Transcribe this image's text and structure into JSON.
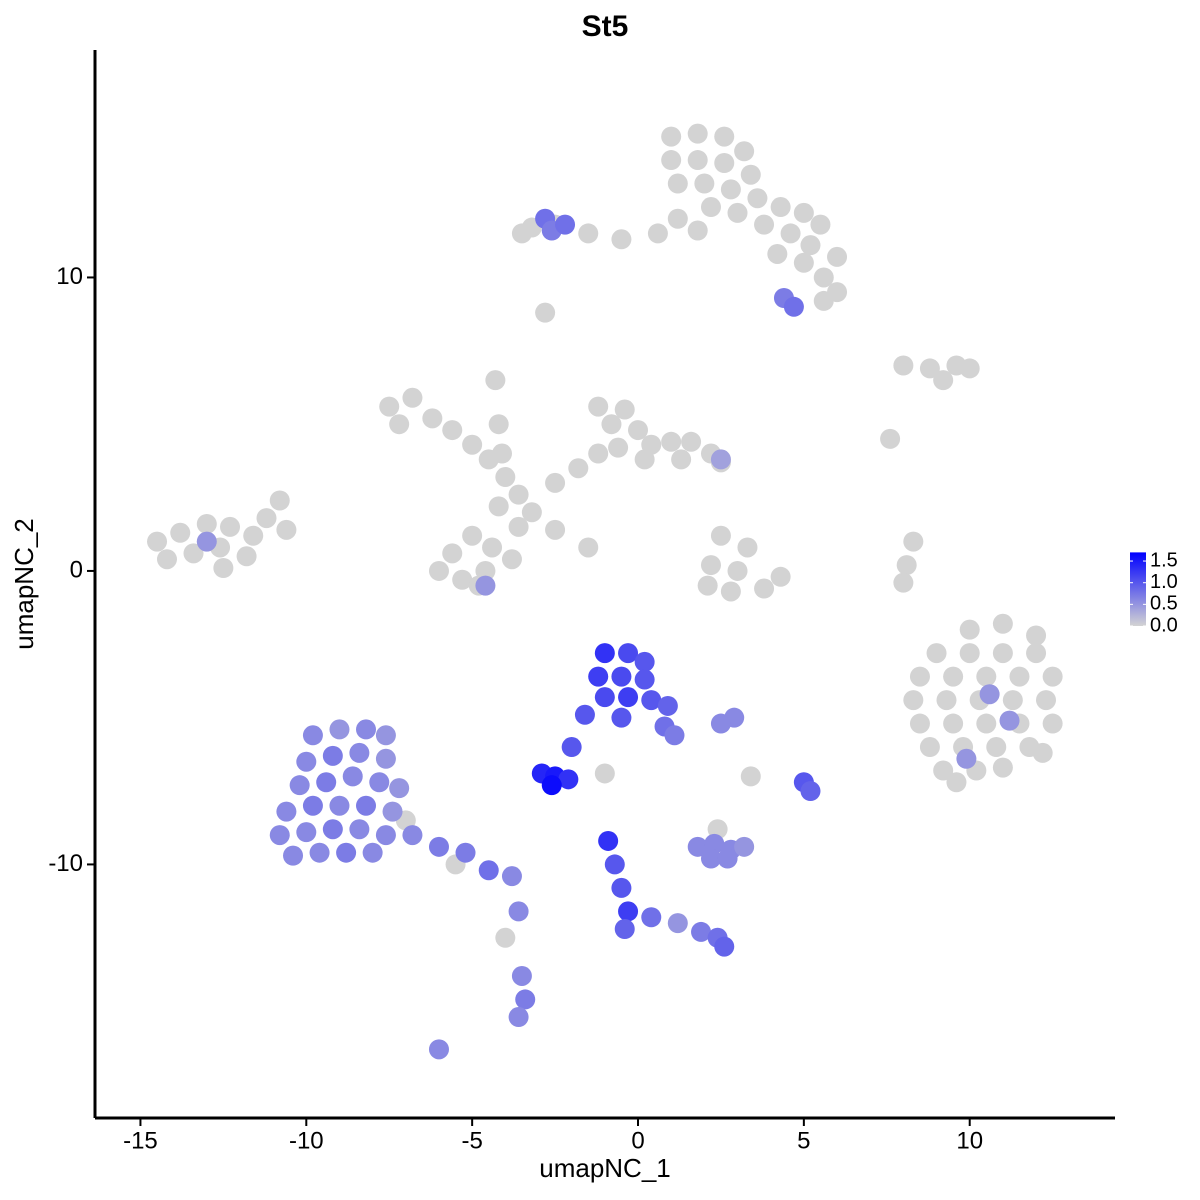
{
  "chart_data": {
    "type": "scatter",
    "title": "St5",
    "x_label": "umapNC_1",
    "y_label": "umapNC_2",
    "xlim": [
      -16.37,
      14.38
    ],
    "ylim": [
      -18.64,
      17.75
    ],
    "xticks": [
      -15,
      -10,
      -5,
      0,
      5,
      10
    ],
    "yticks": [
      -10,
      0,
      10
    ],
    "low_color": "#d3d3d3",
    "high_color": "#0000ff",
    "colorbar": {
      "lim": [
        0,
        1.7
      ],
      "ticks": [
        {
          "value": 0,
          "label": "0.0"
        },
        {
          "value": 0.5,
          "label": "0.5"
        },
        {
          "value": 1,
          "label": "1.0"
        },
        {
          "value": 1.5,
          "label": "1.5"
        }
      ]
    },
    "points": [
      {
        "x": 1,
        "y": 14.8,
        "value": 0
      },
      {
        "x": 1.8,
        "y": 14.9,
        "value": 0
      },
      {
        "x": 2.6,
        "y": 14.8,
        "value": 0
      },
      {
        "x": 3.2,
        "y": 14.3,
        "value": 0
      },
      {
        "x": 1,
        "y": 14,
        "value": 0
      },
      {
        "x": 1.8,
        "y": 14,
        "value": 0
      },
      {
        "x": 2.6,
        "y": 13.9,
        "value": 0
      },
      {
        "x": 3.4,
        "y": 13.5,
        "value": 0
      },
      {
        "x": 1.2,
        "y": 13.2,
        "value": 0
      },
      {
        "x": 2,
        "y": 13.2,
        "value": 0
      },
      {
        "x": 2.8,
        "y": 13,
        "value": 0
      },
      {
        "x": 3.6,
        "y": 12.7,
        "value": 0
      },
      {
        "x": 4.3,
        "y": 12.4,
        "value": 0
      },
      {
        "x": 5,
        "y": 12.2,
        "value": 0
      },
      {
        "x": 5.5,
        "y": 11.8,
        "value": 0
      },
      {
        "x": 2.2,
        "y": 12.4,
        "value": 0
      },
      {
        "x": 3,
        "y": 12.2,
        "value": 0
      },
      {
        "x": 3.8,
        "y": 11.8,
        "value": 0
      },
      {
        "x": 4.6,
        "y": 11.5,
        "value": 0
      },
      {
        "x": 1.8,
        "y": 11.6,
        "value": 0
      },
      {
        "x": 4.2,
        "y": 10.8,
        "value": 0
      },
      {
        "x": 5,
        "y": 10.5,
        "value": 0
      },
      {
        "x": 5.6,
        "y": 10,
        "value": 0
      },
      {
        "x": 6,
        "y": 9.5,
        "value": 0
      },
      {
        "x": 5.2,
        "y": 11.1,
        "value": 0
      },
      {
        "x": 1.2,
        "y": 12,
        "value": 0
      },
      {
        "x": 0.6,
        "y": 11.5,
        "value": 0
      },
      {
        "x": -0.5,
        "y": 11.3,
        "value": 0
      },
      {
        "x": -1.5,
        "y": 11.5,
        "value": 0
      },
      {
        "x": -2.5,
        "y": 11.8,
        "value": 0
      },
      {
        "x": -3.2,
        "y": 11.7,
        "value": 0
      },
      {
        "x": -3.5,
        "y": 11.5,
        "value": 0
      },
      {
        "x": 6,
        "y": 10.7,
        "value": 0
      },
      {
        "x": 5.6,
        "y": 9.2,
        "value": 0
      },
      {
        "x": -2.8,
        "y": 12,
        "value": 0.8
      },
      {
        "x": -2.6,
        "y": 11.6,
        "value": 0.7
      },
      {
        "x": -2.2,
        "y": 11.8,
        "value": 0.8
      },
      {
        "x": 4.4,
        "y": 9.3,
        "value": 0.7
      },
      {
        "x": 4.7,
        "y": 9,
        "value": 0.8
      },
      {
        "x": -2.8,
        "y": 8.8,
        "value": 0
      },
      {
        "x": -7.5,
        "y": 5.6,
        "value": 0
      },
      {
        "x": -6.8,
        "y": 5.9,
        "value": 0
      },
      {
        "x": -6.2,
        "y": 5.2,
        "value": 0
      },
      {
        "x": -7.2,
        "y": 5,
        "value": 0
      },
      {
        "x": -5.6,
        "y": 4.8,
        "value": 0
      },
      {
        "x": -5,
        "y": 4.3,
        "value": 0
      },
      {
        "x": -4.5,
        "y": 3.8,
        "value": 0
      },
      {
        "x": -4,
        "y": 3.2,
        "value": 0
      },
      {
        "x": -3.6,
        "y": 2.6,
        "value": 0
      },
      {
        "x": -3.2,
        "y": 2,
        "value": 0
      },
      {
        "x": -4.2,
        "y": 2.2,
        "value": 0
      },
      {
        "x": -4.3,
        "y": 6.5,
        "value": 0
      },
      {
        "x": -4.2,
        "y": 5,
        "value": 0
      },
      {
        "x": -4.1,
        "y": 4,
        "value": 0
      },
      {
        "x": -2.5,
        "y": 3,
        "value": 0
      },
      {
        "x": -1.8,
        "y": 3.5,
        "value": 0
      },
      {
        "x": -1.2,
        "y": 4,
        "value": 0
      },
      {
        "x": -0.8,
        "y": 5,
        "value": 0
      },
      {
        "x": -1.2,
        "y": 5.6,
        "value": 0
      },
      {
        "x": -0.4,
        "y": 5.5,
        "value": 0
      },
      {
        "x": 0,
        "y": 4.8,
        "value": 0
      },
      {
        "x": 0.4,
        "y": 4.3,
        "value": 0
      },
      {
        "x": 1,
        "y": 4.4,
        "value": 0
      },
      {
        "x": 1.6,
        "y": 4.4,
        "value": 0
      },
      {
        "x": 2.2,
        "y": 4,
        "value": 0
      },
      {
        "x": 2.5,
        "y": 3.7,
        "value": 0
      },
      {
        "x": 0.2,
        "y": 3.8,
        "value": 0
      },
      {
        "x": -0.6,
        "y": 4.2,
        "value": 0
      },
      {
        "x": 1.3,
        "y": 3.8,
        "value": 0
      },
      {
        "x": -5,
        "y": 1.2,
        "value": 0
      },
      {
        "x": -4.4,
        "y": 0.8,
        "value": 0
      },
      {
        "x": -5.6,
        "y": 0.6,
        "value": 0
      },
      {
        "x": -6,
        "y": 0,
        "value": 0
      },
      {
        "x": -5.3,
        "y": -0.3,
        "value": 0
      },
      {
        "x": -4.6,
        "y": 0,
        "value": 0
      },
      {
        "x": -3.8,
        "y": 0.4,
        "value": 0
      },
      {
        "x": -3.6,
        "y": 1.5,
        "value": 0
      },
      {
        "x": -4.8,
        "y": -0.5,
        "value": 0
      },
      {
        "x": -2.5,
        "y": 1.4,
        "value": 0
      },
      {
        "x": -1.5,
        "y": 0.8,
        "value": 0
      },
      {
        "x": -4.6,
        "y": -0.5,
        "value": 0.5
      },
      {
        "x": 2.5,
        "y": 3.8,
        "value": 0.4
      },
      {
        "x": -14.5,
        "y": 1,
        "value": 0
      },
      {
        "x": -13.8,
        "y": 1.3,
        "value": 0
      },
      {
        "x": -13,
        "y": 1.6,
        "value": 0
      },
      {
        "x": -12.3,
        "y": 1.5,
        "value": 0
      },
      {
        "x": -11.6,
        "y": 1.2,
        "value": 0
      },
      {
        "x": -14.2,
        "y": 0.4,
        "value": 0
      },
      {
        "x": -13.4,
        "y": 0.6,
        "value": 0
      },
      {
        "x": -12.6,
        "y": 0.8,
        "value": 0
      },
      {
        "x": -11.8,
        "y": 0.5,
        "value": 0
      },
      {
        "x": -12.5,
        "y": 0.1,
        "value": 0
      },
      {
        "x": -11.2,
        "y": 1.8,
        "value": 0
      },
      {
        "x": -10.8,
        "y": 2.4,
        "value": 0
      },
      {
        "x": -10.6,
        "y": 1.4,
        "value": 0
      },
      {
        "x": -13,
        "y": 1,
        "value": 0.5
      },
      {
        "x": 8,
        "y": 7,
        "value": 0
      },
      {
        "x": 8.8,
        "y": 6.9,
        "value": 0
      },
      {
        "x": 9.6,
        "y": 7,
        "value": 0
      },
      {
        "x": 10,
        "y": 6.9,
        "value": 0
      },
      {
        "x": 9.2,
        "y": 6.5,
        "value": 0
      },
      {
        "x": 7.6,
        "y": 4.5,
        "value": 0
      },
      {
        "x": 2.5,
        "y": 1.2,
        "value": 0
      },
      {
        "x": 3.3,
        "y": 0.8,
        "value": 0
      },
      {
        "x": 2.2,
        "y": 0.2,
        "value": 0
      },
      {
        "x": 3,
        "y": 0,
        "value": 0
      },
      {
        "x": 3.8,
        "y": -0.6,
        "value": 0
      },
      {
        "x": 2.8,
        "y": -0.7,
        "value": 0
      },
      {
        "x": 2.1,
        "y": -0.5,
        "value": 0
      },
      {
        "x": 4.3,
        "y": -0.2,
        "value": 0
      },
      {
        "x": 8.3,
        "y": 1,
        "value": 0
      },
      {
        "x": 8.1,
        "y": 0.2,
        "value": 0
      },
      {
        "x": 8,
        "y": -0.4,
        "value": 0
      },
      {
        "x": 10,
        "y": -2,
        "value": 0
      },
      {
        "x": 11,
        "y": -1.8,
        "value": 0
      },
      {
        "x": 12,
        "y": -2.2,
        "value": 0
      },
      {
        "x": 9,
        "y": -2.8,
        "value": 0
      },
      {
        "x": 10,
        "y": -2.8,
        "value": 0
      },
      {
        "x": 11,
        "y": -2.8,
        "value": 0
      },
      {
        "x": 12,
        "y": -2.8,
        "value": 0
      },
      {
        "x": 8.5,
        "y": -3.6,
        "value": 0
      },
      {
        "x": 9.5,
        "y": -3.6,
        "value": 0
      },
      {
        "x": 10.5,
        "y": -3.6,
        "value": 0
      },
      {
        "x": 11.5,
        "y": -3.6,
        "value": 0
      },
      {
        "x": 12.5,
        "y": -3.6,
        "value": 0
      },
      {
        "x": 8.3,
        "y": -4.4,
        "value": 0
      },
      {
        "x": 9.3,
        "y": -4.4,
        "value": 0
      },
      {
        "x": 10.3,
        "y": -4.4,
        "value": 0
      },
      {
        "x": 11.3,
        "y": -4.4,
        "value": 0
      },
      {
        "x": 12.3,
        "y": -4.4,
        "value": 0
      },
      {
        "x": 8.5,
        "y": -5.2,
        "value": 0
      },
      {
        "x": 9.5,
        "y": -5.2,
        "value": 0
      },
      {
        "x": 10.5,
        "y": -5.2,
        "value": 0
      },
      {
        "x": 11.5,
        "y": -5.2,
        "value": 0
      },
      {
        "x": 12.5,
        "y": -5.2,
        "value": 0
      },
      {
        "x": 8.8,
        "y": -6,
        "value": 0
      },
      {
        "x": 9.8,
        "y": -6,
        "value": 0
      },
      {
        "x": 10.8,
        "y": -6,
        "value": 0
      },
      {
        "x": 11.8,
        "y": -6,
        "value": 0
      },
      {
        "x": 12.2,
        "y": -6.2,
        "value": 0
      },
      {
        "x": 9.2,
        "y": -6.8,
        "value": 0
      },
      {
        "x": 10.2,
        "y": -6.8,
        "value": 0
      },
      {
        "x": 11,
        "y": -6.7,
        "value": 0
      },
      {
        "x": 9.6,
        "y": -7.2,
        "value": 0
      },
      {
        "x": 10.6,
        "y": -4.2,
        "value": 0.5
      },
      {
        "x": 11.2,
        "y": -5.1,
        "value": 0.5
      },
      {
        "x": 9.9,
        "y": -6.4,
        "value": 0.5
      },
      {
        "x": -9.8,
        "y": -5.6,
        "value": 0.6
      },
      {
        "x": -9,
        "y": -5.4,
        "value": 0.5
      },
      {
        "x": -8.2,
        "y": -5.4,
        "value": 0.6
      },
      {
        "x": -7.6,
        "y": -5.6,
        "value": 0.5
      },
      {
        "x": -10,
        "y": -6.5,
        "value": 0.6
      },
      {
        "x": -9.2,
        "y": -6.3,
        "value": 0.7
      },
      {
        "x": -8.4,
        "y": -6.2,
        "value": 0.6
      },
      {
        "x": -7.6,
        "y": -6.4,
        "value": 0.5
      },
      {
        "x": -10.2,
        "y": -7.3,
        "value": 0.6
      },
      {
        "x": -9.4,
        "y": -7.2,
        "value": 0.7
      },
      {
        "x": -8.6,
        "y": -7,
        "value": 0.6
      },
      {
        "x": -7.8,
        "y": -7.2,
        "value": 0.6
      },
      {
        "x": -7.2,
        "y": -7.4,
        "value": 0.5
      },
      {
        "x": -10.6,
        "y": -8.2,
        "value": 0.6
      },
      {
        "x": -9.8,
        "y": -8,
        "value": 0.7
      },
      {
        "x": -9,
        "y": -8,
        "value": 0.6
      },
      {
        "x": -8.2,
        "y": -8,
        "value": 0.7
      },
      {
        "x": -7.4,
        "y": -8.2,
        "value": 0.5
      },
      {
        "x": -10.8,
        "y": -9,
        "value": 0.6
      },
      {
        "x": -10,
        "y": -8.9,
        "value": 0.6
      },
      {
        "x": -9.2,
        "y": -8.8,
        "value": 0.7
      },
      {
        "x": -8.4,
        "y": -8.8,
        "value": 0.6
      },
      {
        "x": -7.6,
        "y": -9,
        "value": 0.6
      },
      {
        "x": -6.8,
        "y": -9,
        "value": 0.6
      },
      {
        "x": -10.4,
        "y": -9.7,
        "value": 0.6
      },
      {
        "x": -9.6,
        "y": -9.6,
        "value": 0.6
      },
      {
        "x": -8.8,
        "y": -9.6,
        "value": 0.7
      },
      {
        "x": -8,
        "y": -9.6,
        "value": 0.6
      },
      {
        "x": -6,
        "y": -9.4,
        "value": 0.7
      },
      {
        "x": -5.2,
        "y": -9.6,
        "value": 0.7
      },
      {
        "x": -4.5,
        "y": -10.2,
        "value": 0.8
      },
      {
        "x": -3.8,
        "y": -10.4,
        "value": 0.6
      },
      {
        "x": -3.6,
        "y": -11.6,
        "value": 0.6
      },
      {
        "x": -3.5,
        "y": -13.8,
        "value": 0.6
      },
      {
        "x": -3.4,
        "y": -14.6,
        "value": 0.7
      },
      {
        "x": -3.6,
        "y": -15.2,
        "value": 0.6
      },
      {
        "x": -6,
        "y": -16.3,
        "value": 0.6
      },
      {
        "x": -7,
        "y": -8.5,
        "value": 0
      },
      {
        "x": -5.5,
        "y": -10,
        "value": 0
      },
      {
        "x": -4,
        "y": -12.5,
        "value": 0
      },
      {
        "x": -1,
        "y": -2.8,
        "value": 1.3
      },
      {
        "x": -0.3,
        "y": -2.8,
        "value": 1.1
      },
      {
        "x": 0.2,
        "y": -3.1,
        "value": 1.0
      },
      {
        "x": -1.2,
        "y": -3.6,
        "value": 1.2
      },
      {
        "x": -0.5,
        "y": -3.6,
        "value": 1.1
      },
      {
        "x": 0.2,
        "y": -3.7,
        "value": 1.0
      },
      {
        "x": -1,
        "y": -4.3,
        "value": 1.1
      },
      {
        "x": -0.3,
        "y": -4.3,
        "value": 1.2
      },
      {
        "x": 0.4,
        "y": -4.4,
        "value": 1.0
      },
      {
        "x": 0.9,
        "y": -4.6,
        "value": 0.9
      },
      {
        "x": -0.5,
        "y": -5,
        "value": 1.0
      },
      {
        "x": 0.8,
        "y": -5.3,
        "value": 0.8
      },
      {
        "x": 1.1,
        "y": -5.6,
        "value": 0.7
      },
      {
        "x": -1.6,
        "y": -4.9,
        "value": 1.0
      },
      {
        "x": -2,
        "y": -6,
        "value": 1.0
      },
      {
        "x": -2.9,
        "y": -6.9,
        "value": 1.4
      },
      {
        "x": -2.5,
        "y": -7,
        "value": 1.5
      },
      {
        "x": -2.1,
        "y": -7.1,
        "value": 1.3
      },
      {
        "x": -2.6,
        "y": -7.3,
        "value": 1.6
      },
      {
        "x": -1,
        "y": -6.9,
        "value": 0
      },
      {
        "x": 1.8,
        "y": -9.4,
        "value": 0.6
      },
      {
        "x": 2.3,
        "y": -9.3,
        "value": 0.6
      },
      {
        "x": 2.8,
        "y": -9.5,
        "value": 0.6
      },
      {
        "x": 3.2,
        "y": -9.4,
        "value": 0.5
      },
      {
        "x": 2.2,
        "y": -9.8,
        "value": 0.6
      },
      {
        "x": 2.7,
        "y": -9.8,
        "value": 0.6
      },
      {
        "x": 2.4,
        "y": -8.8,
        "value": 0
      },
      {
        "x": -0.9,
        "y": -9.2,
        "value": 1.3
      },
      {
        "x": -0.7,
        "y": -10,
        "value": 1.0
      },
      {
        "x": -0.5,
        "y": -10.8,
        "value": 1.0
      },
      {
        "x": -0.3,
        "y": -11.6,
        "value": 1.2
      },
      {
        "x": -0.4,
        "y": -12.2,
        "value": 0.9
      },
      {
        "x": 0.4,
        "y": -11.8,
        "value": 0.8
      },
      {
        "x": 1.2,
        "y": -12,
        "value": 0.5
      },
      {
        "x": 1.9,
        "y": -12.3,
        "value": 0.7
      },
      {
        "x": 2.4,
        "y": -12.5,
        "value": 0.8
      },
      {
        "x": 2.6,
        "y": -12.8,
        "value": 0.9
      },
      {
        "x": 5,
        "y": -7.2,
        "value": 1.0
      },
      {
        "x": 5.2,
        "y": -7.5,
        "value": 0.9
      },
      {
        "x": 2.9,
        "y": -5,
        "value": 0.6
      },
      {
        "x": 2.5,
        "y": -5.2,
        "value": 0.6
      },
      {
        "x": 3.4,
        "y": -7,
        "value": 0
      }
    ]
  }
}
